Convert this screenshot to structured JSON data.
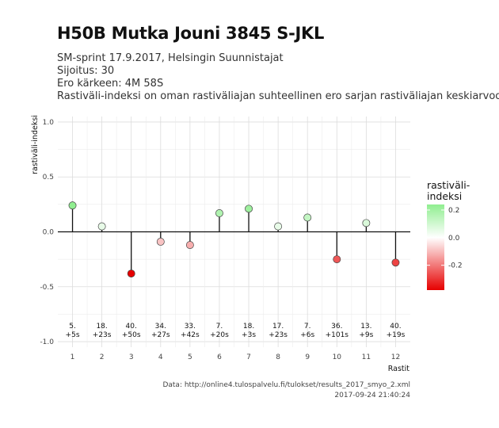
{
  "chart_data": {
    "type": "lollipop",
    "title": "H50B Mutka Jouni 3845 S-JKL",
    "subtitle_lines": [
      "SM-sprint 17.9.2017, Helsingin Suunnistajat",
      "Sijoitus: 30",
      "Ero kärkeen: 4M 58S",
      "Rastiväli-indeksi on oman rastiväliajan suhteellinen ero sarjan rastiväliajan keskiarvoon"
    ],
    "xlabel": "Rastit",
    "ylabel": "rastiväli-indeksi",
    "x": [
      1,
      2,
      3,
      4,
      5,
      6,
      7,
      8,
      9,
      10,
      11,
      12
    ],
    "values": [
      0.24,
      0.05,
      -0.38,
      -0.09,
      -0.12,
      0.17,
      0.21,
      0.05,
      0.13,
      -0.25,
      0.08,
      -0.28
    ],
    "rank_labels": [
      "5.",
      "18.",
      "40.",
      "34.",
      "33.",
      "7.",
      "18.",
      "17.",
      "7.",
      "36.",
      "13.",
      "40."
    ],
    "time_labels": [
      "+5s",
      "+23s",
      "+50s",
      "+27s",
      "+42s",
      "+20s",
      "+3s",
      "+23s",
      "+6s",
      "+101s",
      "+9s",
      "+19s"
    ],
    "ylim": [
      -1.05,
      1.05
    ],
    "xlim": [
      0.5,
      12.5
    ],
    "yticks": [
      1.0,
      0.5,
      0.0,
      -0.5,
      -1.0
    ],
    "ytick_labels": [
      "1.0",
      "0.5",
      "0.0",
      "-0.5",
      "-1.0"
    ],
    "xtick_labels": [
      "1",
      "2",
      "3",
      "4",
      "5",
      "6",
      "7",
      "8",
      "9",
      "10",
      "11",
      "12"
    ],
    "grid": true,
    "legend": {
      "title_lines": [
        "rastiväli-",
        "indeksi"
      ],
      "ticks": [
        0.2,
        0.0,
        -0.2
      ],
      "tick_labels": [
        "0.2",
        "0.0",
        "-0.2"
      ],
      "range": [
        -0.38,
        0.24
      ],
      "placement": "right"
    },
    "colors": {
      "high": "#90ee90",
      "mid": "#ffffff",
      "low": "#e60000"
    },
    "caption_lines": [
      "Data: http://online4.tulospalvelu.fi/tulokset/results_2017_smyo_2.xml",
      "2017-09-24 21:40:24"
    ]
  }
}
